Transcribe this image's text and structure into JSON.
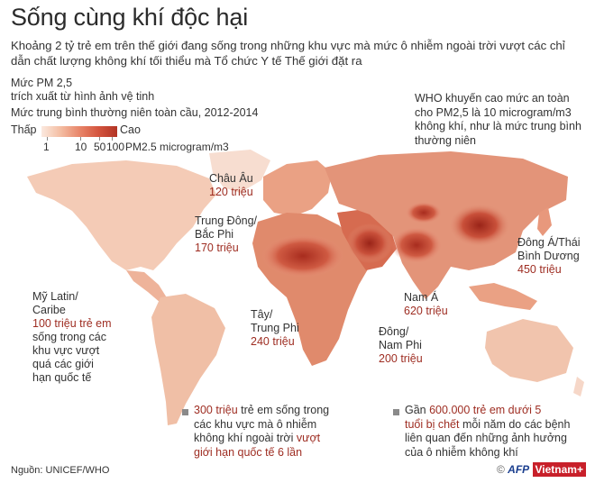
{
  "title": "Sống cùng khí độc hại",
  "subtitle": "Khoảng 2 tỷ trẻ em trên thế giới đang sống trong những khu vực mà mức ô nhiễm ngoài trời vượt các chỉ dẫn chất lượng không khí tối thiểu mà Tổ chức Y tế Thế giới đặt ra",
  "pm": {
    "line1": "Mức PM 2,5",
    "line2": "trích xuất từ hình ảnh vệ tinh",
    "line3": "Mức trung bình thường niên toàn cầu, 2012-2014"
  },
  "legend": {
    "low": "Thấp",
    "high": "Cao",
    "ticks": [
      "1",
      "10",
      "50",
      "100"
    ],
    "unit": "PM2.5 microgram/m3"
  },
  "who_note": "WHO khuyến cao mức an toàn cho PM2,5 là 10 microgram/m3 không khí, như là mức trung bình thường niên",
  "regions": {
    "europe": {
      "name": "Châu Âu",
      "value": "120 triệu"
    },
    "mena": {
      "name1": "Trung Đông/",
      "name2": "Bắc Phi",
      "value": "170 triệu"
    },
    "latam": {
      "name1": "Mỹ Latin/",
      "name2": "Caribe",
      "value": "100 triệu trẻ em",
      "desc1": "sống trong các",
      "desc2": "khu vực vượt",
      "desc3": "quá các giới",
      "desc4": "hạn quốc tế"
    },
    "wcafrica": {
      "name1": "Tây/",
      "name2": "Trung Phi",
      "value": "240 triệu"
    },
    "southasia": {
      "name": "Nam Á",
      "value": "620 triệu"
    },
    "esafrica": {
      "name1": "Đông/",
      "name2": "Nam Phi",
      "value": "200 triệu"
    },
    "eap": {
      "name1": "Đông Á/Thái",
      "name2": "Bình Dương",
      "value": "450 triệu"
    }
  },
  "notes": {
    "left": {
      "hl": "300 triệu",
      "t1": " trẻ em sống trong",
      "t2": "các khu vực mà ô nhiễm",
      "t3a": "không khí ngoài trời ",
      "t3b": "vượt",
      "t4": "giới hạn quốc tế 6 lần"
    },
    "right": {
      "t1a": "Gần ",
      "t1b": "600.000 trẻ em dưới 5",
      "t2a": "tuổi bị chết",
      "t2b": " mỗi năm do các bệnh",
      "t3": "liên quan đến những ảnh hưởng",
      "t4": "của ô nhiễm không khí"
    }
  },
  "source": "Nguồn: UNICEF/WHO",
  "credit": {
    "agency": "AFP",
    "brand": "Vietnam+"
  },
  "colors": {
    "dark": "#b23425",
    "mid": "#e08a6c",
    "light": "#f6d2bf",
    "value_text": "#9e2d22"
  }
}
